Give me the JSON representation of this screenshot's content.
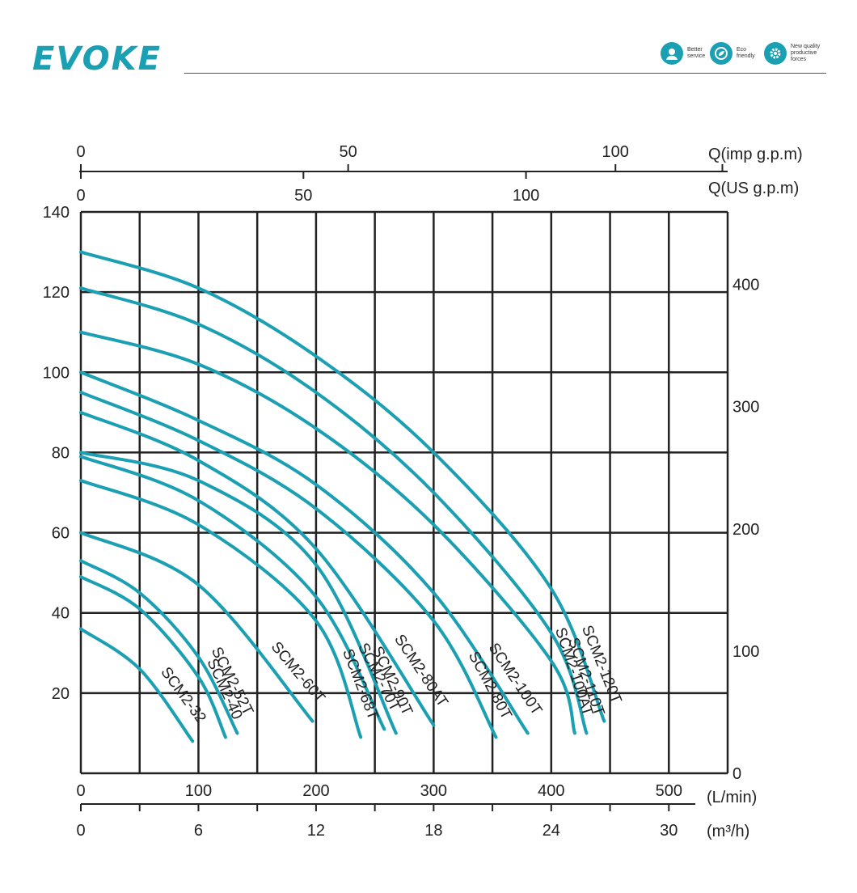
{
  "header": {
    "logo": "EVOKE",
    "badges": [
      {
        "icon": "headset-icon",
        "line1": "Better",
        "line2": "service",
        "line3": ""
      },
      {
        "icon": "globe-leaf-icon",
        "line1": "Eco",
        "line2": "friendly",
        "line3": ""
      },
      {
        "icon": "gear-icon",
        "line1": "New quality",
        "line2": "productive",
        "line3": "forces"
      }
    ],
    "accent_color": "#1b9fb3"
  },
  "chart_data": {
    "type": "line",
    "title": "",
    "grid": true,
    "curve_color": "#1b9fb3",
    "x_axis": {
      "label": "(L/min)",
      "range": [
        0,
        550
      ],
      "grid_step": 50,
      "ticks": [
        0,
        100,
        200,
        300,
        400,
        500
      ]
    },
    "x_axis_m3h": {
      "label": "(m³/h)",
      "ticks": [
        0,
        6,
        12,
        18,
        24,
        30
      ]
    },
    "x_axis_us_gpm": {
      "label": "Q(US g.p.m)",
      "ticks": [
        0,
        50,
        100
      ]
    },
    "x_axis_imp_gpm": {
      "label": "Q(imp g.p.m)",
      "ticks": [
        0,
        50,
        100
      ]
    },
    "y_axis_left": {
      "range": [
        0,
        140
      ],
      "ticks": [
        20,
        40,
        60,
        80,
        100,
        120,
        140
      ],
      "grid_step": 20
    },
    "y_axis_right": {
      "ticks": [
        0,
        100,
        200,
        300,
        400
      ]
    },
    "series": [
      {
        "name": "SCM2-120T",
        "x": [
          0,
          100,
          200,
          300,
          400,
          445
        ],
        "y": [
          130,
          121,
          104,
          80,
          46,
          13
        ]
      },
      {
        "name": "SCM2-110T",
        "x": [
          0,
          100,
          200,
          300,
          400,
          430
        ],
        "y": [
          121,
          112,
          95,
          70,
          35,
          10
        ]
      },
      {
        "name": "SCM2-100AT",
        "x": [
          0,
          100,
          200,
          300,
          400,
          420
        ],
        "y": [
          110,
          102,
          86,
          62,
          28,
          10
        ]
      },
      {
        "name": "SCM2-100T",
        "x": [
          0,
          100,
          200,
          300,
          380
        ],
        "y": [
          100,
          88,
          72,
          45,
          10
        ]
      },
      {
        "name": "SCM2-80T",
        "x": [
          0,
          100,
          200,
          300,
          353
        ],
        "y": [
          95,
          83,
          66,
          38,
          9
        ]
      },
      {
        "name": "SCM2-80AT",
        "x": [
          0,
          100,
          200,
          300
        ],
        "y": [
          90,
          78,
          56,
          12
        ]
      },
      {
        "name": "SCM2-90T",
        "x": [
          0,
          100,
          200,
          268
        ],
        "y": [
          80,
          73,
          52,
          10
        ]
      },
      {
        "name": "SCM2-70T",
        "x": [
          0,
          100,
          200,
          258
        ],
        "y": [
          79,
          68,
          44,
          11
        ]
      },
      {
        "name": "SCM2-68T",
        "x": [
          0,
          100,
          200,
          238
        ],
        "y": [
          73,
          62,
          38,
          9
        ]
      },
      {
        "name": "SCM2-60T",
        "x": [
          0,
          100,
          197
        ],
        "y": [
          60,
          47,
          13
        ]
      },
      {
        "name": "SCM2-52T",
        "x": [
          0,
          50,
          100,
          133
        ],
        "y": [
          53,
          45,
          29,
          10
        ]
      },
      {
        "name": "SCM2-40",
        "x": [
          0,
          50,
          100,
          123
        ],
        "y": [
          49,
          41,
          24,
          9
        ]
      },
      {
        "name": "SCM2-32",
        "x": [
          0,
          50,
          95
        ],
        "y": [
          36,
          26,
          8
        ]
      }
    ],
    "labels": [
      {
        "text": "SCM2-120T",
        "series": "SCM2-120T"
      },
      {
        "text": "SCM2-110T",
        "series": "SCM2-110T"
      },
      {
        "text": "SCM2-100AT",
        "series": "SCM2-100AT"
      },
      {
        "text": "SCM2-100T",
        "series": "SCM2-100T"
      },
      {
        "text": "SCM2-80T",
        "series": "SCM2-80T"
      },
      {
        "text": "SCM2-80AT",
        "series": "SCM2-80AT"
      },
      {
        "text": "SCM2-90T",
        "series": "SCM2-90T"
      },
      {
        "text": "SCM2-70T",
        "series": "SCM2-70T"
      },
      {
        "text": "SCM2-68T",
        "series": "SCM2-68T"
      },
      {
        "text": "SCM2-60T",
        "series": "SCM2-60T"
      },
      {
        "text": "SCM2-52T",
        "series": "SCM2-52T"
      },
      {
        "text": "SCM2-40",
        "series": "SCM2-40"
      },
      {
        "text": "SCM2-32",
        "series": "SCM2-32"
      }
    ]
  }
}
